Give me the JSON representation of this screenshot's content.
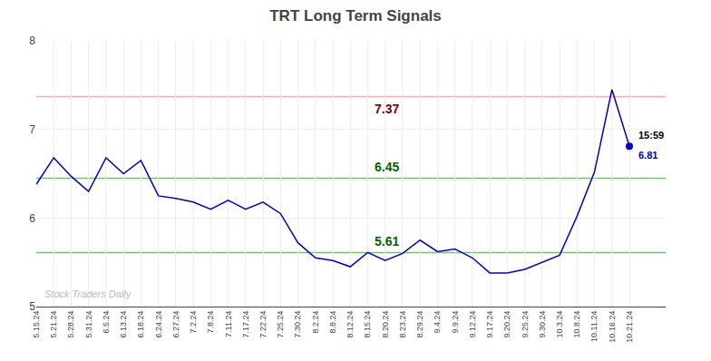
{
  "chart_data": {
    "type": "line",
    "title": "TRT Long Term Signals",
    "categories": [
      "5.15.24",
      "5.21.24",
      "5.28.24",
      "5.31.24",
      "6.5.24",
      "6.13.24",
      "6.18.24",
      "6.24.24",
      "6.27.24",
      "7.2.24",
      "7.8.24",
      "7.11.24",
      "7.17.24",
      "7.22.24",
      "7.25.24",
      "7.30.24",
      "8.2.24",
      "8.8.24",
      "8.12.24",
      "8.15.24",
      "8.20.24",
      "8.23.24",
      "8.29.24",
      "9.4.24",
      "9.9.24",
      "9.12.24",
      "9.17.24",
      "9.20.24",
      "9.25.24",
      "9.30.24",
      "10.3.24",
      "10.8.24",
      "10.11.24",
      "10.16.24",
      "10.21.24"
    ],
    "values": [
      6.38,
      6.68,
      6.47,
      6.3,
      6.68,
      6.5,
      6.65,
      6.25,
      6.22,
      6.18,
      6.1,
      6.2,
      6.1,
      6.18,
      6.05,
      5.72,
      5.55,
      5.52,
      5.45,
      5.61,
      5.52,
      5.6,
      5.75,
      5.62,
      5.65,
      5.55,
      5.38,
      5.38,
      5.42,
      5.5,
      5.58,
      6.02,
      6.52,
      7.45,
      6.81
    ],
    "color": "#0000cc",
    "hlines": [
      {
        "value": 7.37,
        "label": "7.37",
        "color": "#ffaaaa",
        "label_color": "#8b0000",
        "label_side": "below"
      },
      {
        "value": 6.45,
        "label": "6.45",
        "color": "#66cc66",
        "label_color": "#006600",
        "label_side": "above"
      },
      {
        "value": 5.61,
        "label": "5.61",
        "color": "#66cc66",
        "label_color": "#006600",
        "label_side": "above"
      }
    ],
    "last_point": {
      "category": "10.21.24",
      "value": 6.81,
      "label": "6.81",
      "time_label": "15:59",
      "color": "#0000cc"
    },
    "watermark": "Stock Traders Daily",
    "ylim": [
      5.0,
      8.0
    ],
    "yticks": [
      5,
      6,
      7,
      8
    ],
    "grid": true
  }
}
